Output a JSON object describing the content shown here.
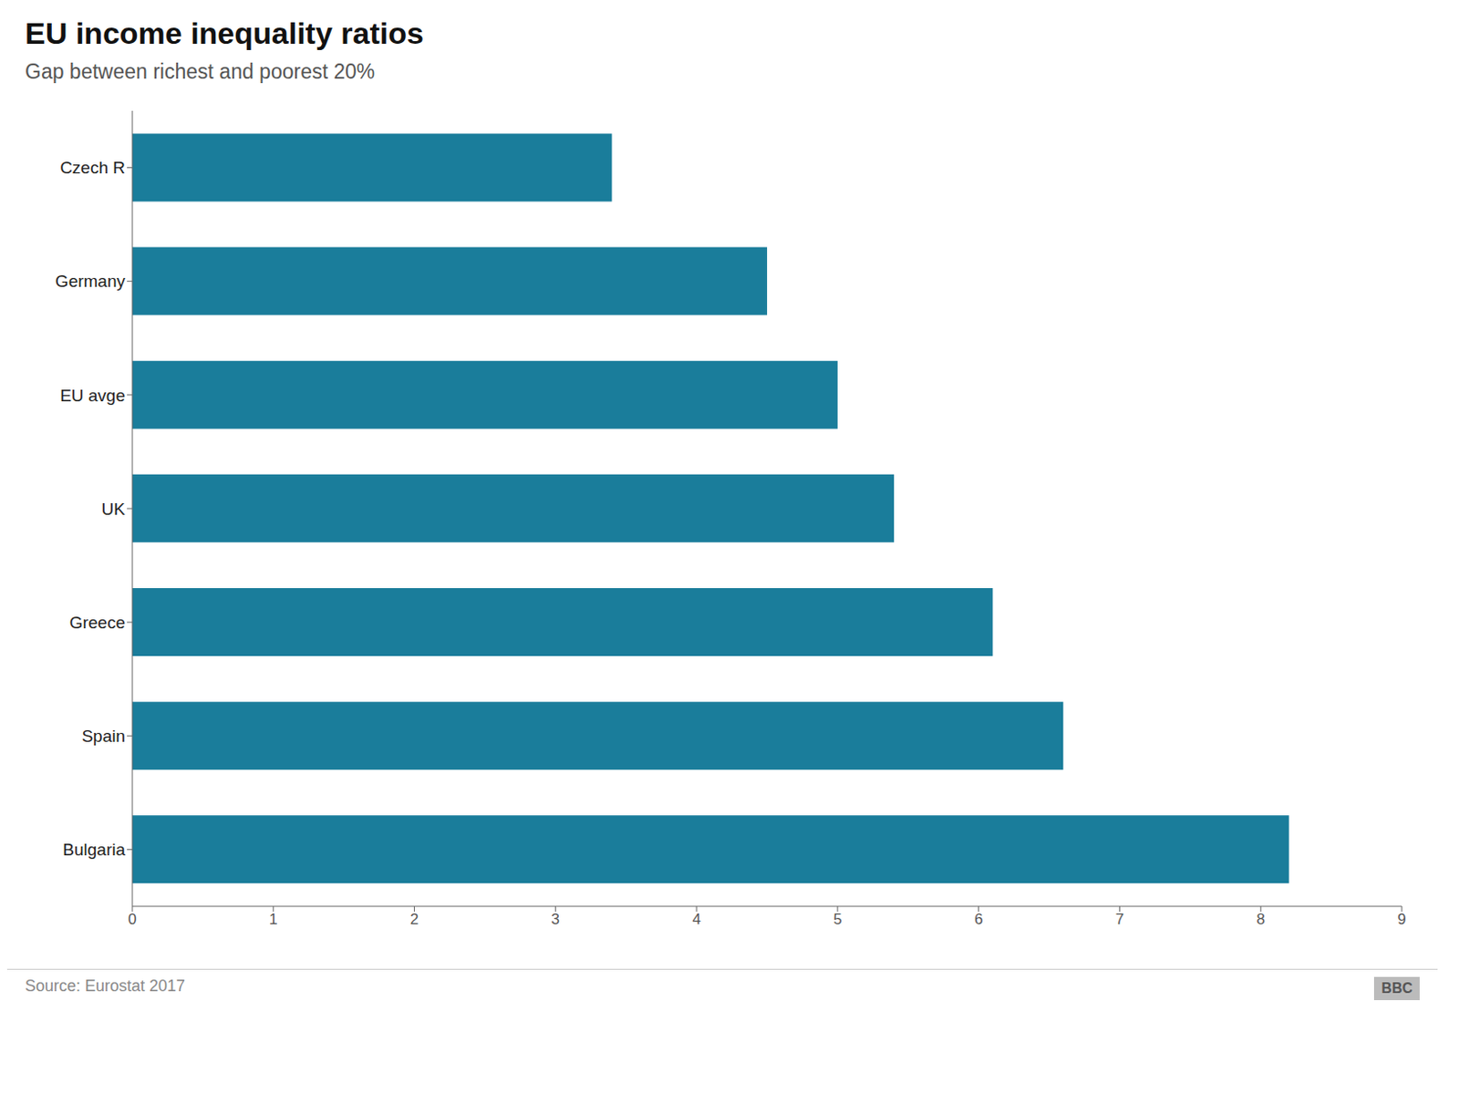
{
  "chart_data": {
    "type": "bar",
    "orientation": "horizontal",
    "title": "EU income inequality ratios",
    "subtitle": "Gap between richest and poorest 20%",
    "source": "Source: Eurostat 2017",
    "annotations": [
      "BBC"
    ],
    "categories": [
      "Czech R",
      "Germany",
      "EU avge",
      "UK",
      "Greece",
      "Spain",
      "Bulgaria"
    ],
    "values": [
      3.4,
      4.5,
      5.0,
      5.4,
      6.1,
      6.6,
      8.2
    ],
    "color": "#1a7d9b",
    "xlim": [
      0,
      9
    ],
    "xticks": [
      0,
      1,
      2,
      3,
      4,
      5,
      6,
      7,
      8,
      9
    ],
    "grid": false
  }
}
